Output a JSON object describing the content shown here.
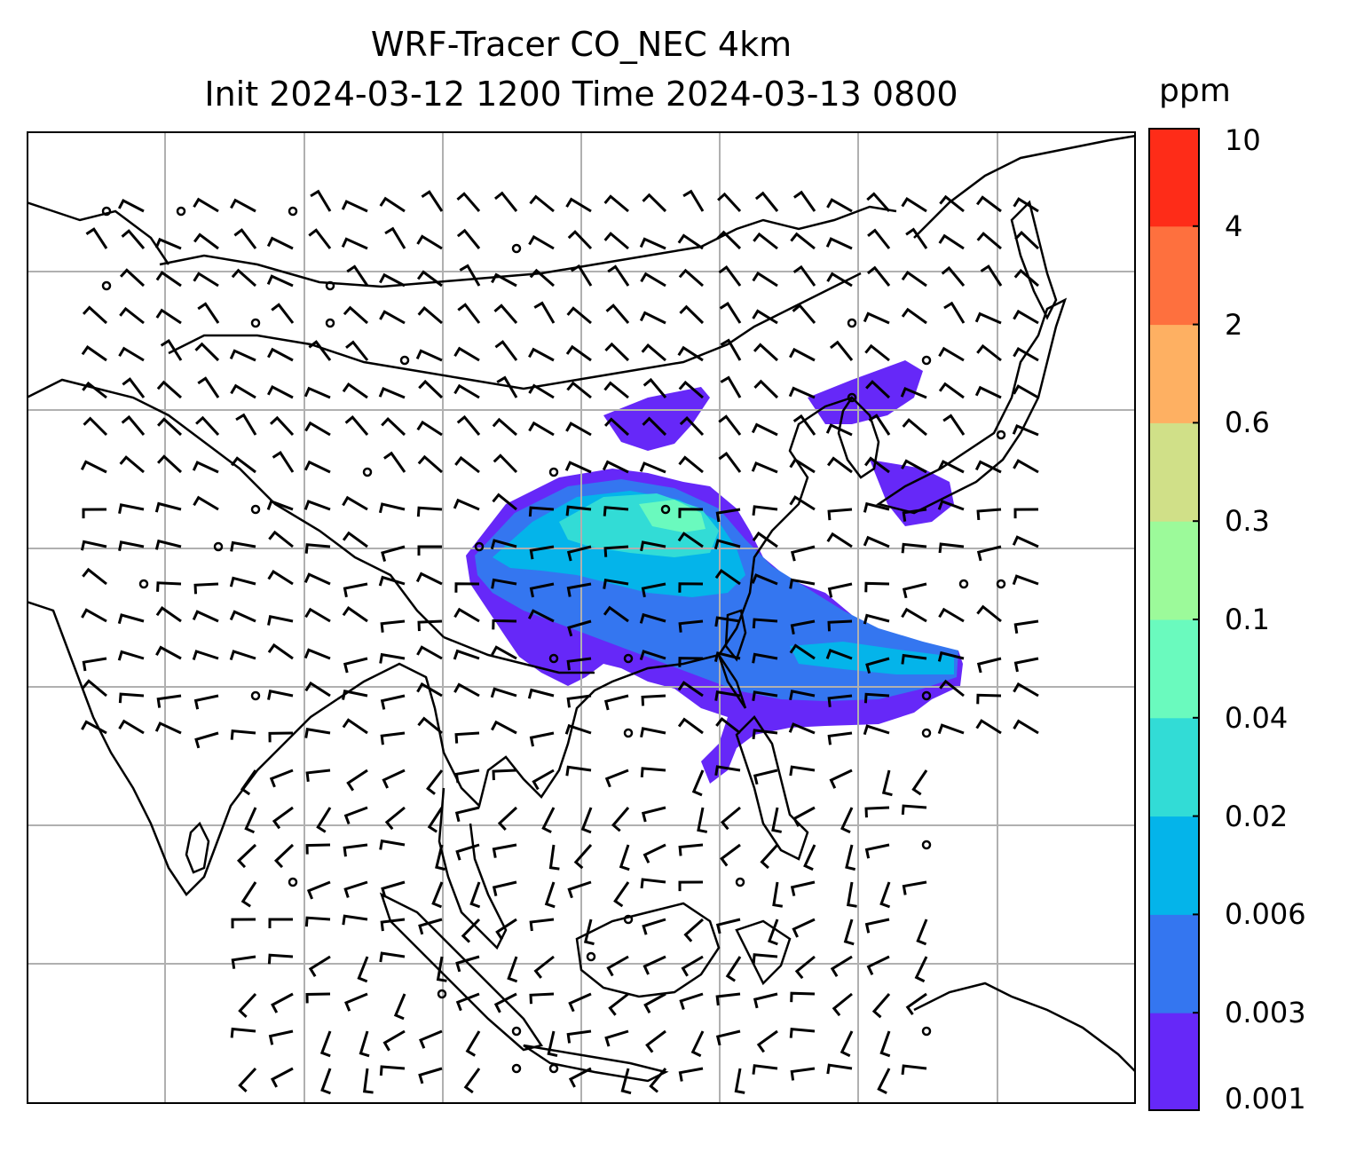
{
  "title": {
    "line1": "WRF-Tracer CO_NEC 4km",
    "line2": "Init 2024-03-12 1200 Time 2024-03-13 0800"
  },
  "colorbar": {
    "unit": "ppm",
    "ticks": [
      "0.001",
      "0.003",
      "0.006",
      "0.02",
      "0.04",
      "0.1",
      "0.3",
      "0.6",
      "2",
      "4",
      "10"
    ],
    "colors": [
      "#6628f8",
      "#3476f0",
      "#04b4ea",
      "#32dcd6",
      "#6afabe",
      "#9cfa9a",
      "#d0e088",
      "#feb062",
      "#fe703e",
      "#fe2c18"
    ]
  },
  "map": {
    "gridlines": true,
    "projection": "lat-lon",
    "plume_colors": {
      "level1": "#6628f8",
      "level2": "#3476f0",
      "level3": "#04b4ea",
      "level4": "#32dcd6",
      "level5": "#6afabe"
    },
    "barb_rows": 24,
    "barb_cols": 26
  }
}
